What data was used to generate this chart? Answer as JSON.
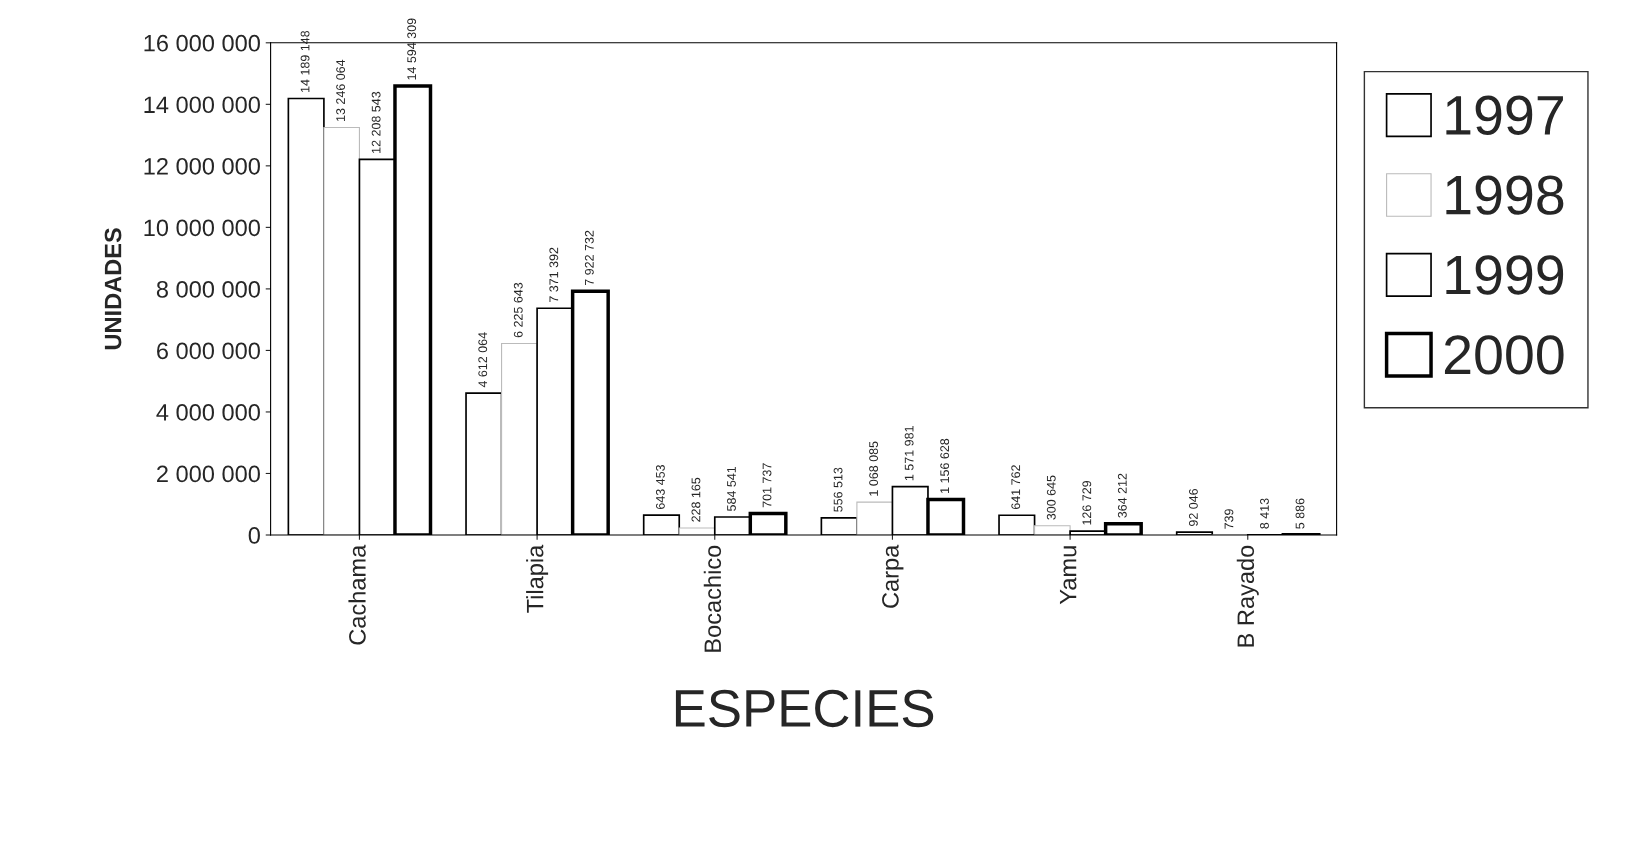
{
  "chart_data": {
    "type": "bar",
    "xlabel": "ESPECIES",
    "ylabel": "UNIDADES",
    "categories": [
      "Cachama",
      "Tilapia",
      "Bocachico",
      "Carpa",
      "Yamu",
      "B Rayado"
    ],
    "series": [
      {
        "name": "1997",
        "color": "#ffffff",
        "values": [
          14189148,
          4612064,
          643453,
          556513,
          641762,
          92046
        ],
        "value_labels": [
          "14 189 148",
          "4 612 064",
          "643 453",
          "556 513",
          "641 762",
          "92 046"
        ]
      },
      {
        "name": "1998",
        "color": "#ffffff",
        "values": [
          13246064,
          6225643,
          228165,
          1068085,
          300645,
          739
        ],
        "value_labels": [
          "13 246 064",
          "6 225 643",
          "228 165",
          "1 068 085",
          "300 645",
          "739"
        ]
      },
      {
        "name": "1999",
        "color": "#ffffff",
        "values": [
          12208543,
          7371392,
          584541,
          1571981,
          126729,
          8413
        ],
        "value_labels": [
          "12 208 543",
          "7 371 392",
          "584 541",
          "1 571 981",
          "126 729",
          "8 413"
        ]
      },
      {
        "name": "2000",
        "color": "#ffffff",
        "values": [
          14594309,
          7922732,
          701737,
          1156628,
          364212,
          5886
        ],
        "value_labels": [
          "14 594 309",
          "7 922 732",
          "701 737",
          "1 156 628",
          "364 212",
          "5 886"
        ]
      }
    ],
    "ylim": [
      0,
      16000000
    ],
    "yticks": [
      {
        "value": 0,
        "label": "0"
      },
      {
        "value": 2000000,
        "label": "2 000 000"
      },
      {
        "value": 4000000,
        "label": "4 000 000"
      },
      {
        "value": 6000000,
        "label": "6 000 000"
      },
      {
        "value": 8000000,
        "label": "8 000 000"
      },
      {
        "value": 10000000,
        "label": "10 000 000"
      },
      {
        "value": 12000000,
        "label": "12 000 000"
      },
      {
        "value": 14000000,
        "label": "14 000 000"
      },
      {
        "value": 16000000,
        "label": "16 000 000"
      }
    ],
    "grid": false,
    "legend": "right"
  }
}
